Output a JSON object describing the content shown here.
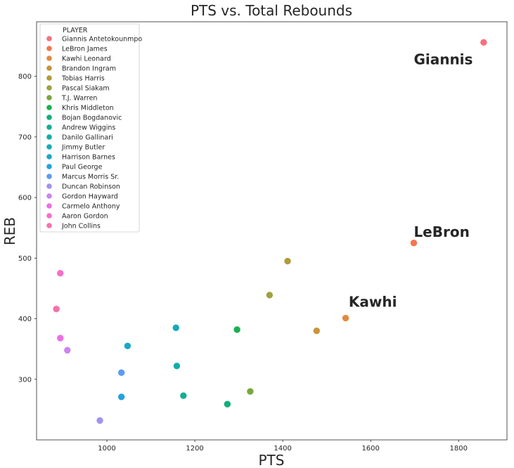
{
  "chart_data": {
    "type": "scatter",
    "title": "PTS vs. Total Rebounds",
    "xlabel": "PTS",
    "ylabel": "REB",
    "xlim": [
      840,
      1910
    ],
    "ylim": [
      200,
      890
    ],
    "xticks": [
      1000,
      1200,
      1400,
      1600,
      1800
    ],
    "yticks": [
      300,
      400,
      500,
      600,
      700,
      800
    ],
    "grid": false,
    "legend_title": "PLAYER",
    "legend_position": "upper-left",
    "points": [
      {
        "name": "Giannis Antetokounmpo",
        "x": 1857,
        "y": 856,
        "color": "#f5717d"
      },
      {
        "name": "LeBron James",
        "x": 1698,
        "y": 525,
        "color": "#f6754e"
      },
      {
        "name": "Kawhi Leonard",
        "x": 1543,
        "y": 401,
        "color": "#e08a3f"
      },
      {
        "name": "Brandon Ingram",
        "x": 1477,
        "y": 380,
        "color": "#c9933a"
      },
      {
        "name": "Tobias Harris",
        "x": 1411,
        "y": 495,
        "color": "#b39b3b"
      },
      {
        "name": "Pascal Siakam",
        "x": 1370,
        "y": 439,
        "color": "#9fa23d"
      },
      {
        "name": "T.J. Warren",
        "x": 1326,
        "y": 280,
        "color": "#79a83e"
      },
      {
        "name": "Khris Middleton",
        "x": 1296,
        "y": 382,
        "color": "#1ab04e"
      },
      {
        "name": "Bojan Bogdanovic",
        "x": 1274,
        "y": 259,
        "color": "#11ae77"
      },
      {
        "name": "Andrew Wiggins",
        "x": 1174,
        "y": 273,
        "color": "#14ae92"
      },
      {
        "name": "Danilo Gallinari",
        "x": 1159,
        "y": 322,
        "color": "#16aca4"
      },
      {
        "name": "Jimmy Butler",
        "x": 1157,
        "y": 385,
        "color": "#18aab6"
      },
      {
        "name": "Harrison Barnes",
        "x": 1047,
        "y": 355,
        "color": "#1aa7c8"
      },
      {
        "name": "Paul George",
        "x": 1033,
        "y": 271,
        "color": "#21a3dd"
      },
      {
        "name": "Marcus Morris Sr.",
        "x": 1033,
        "y": 311,
        "color": "#5b9cf0"
      },
      {
        "name": "Duncan Robinson",
        "x": 984,
        "y": 232,
        "color": "#a292f0"
      },
      {
        "name": "Gordon Hayward",
        "x": 910,
        "y": 348,
        "color": "#cd84ef"
      },
      {
        "name": "Carmelo Anthony",
        "x": 894,
        "y": 368,
        "color": "#ec6fe4"
      },
      {
        "name": "Aaron Gordon",
        "x": 894,
        "y": 475,
        "color": "#f66fc9"
      },
      {
        "name": "John Collins",
        "x": 885,
        "y": 416,
        "color": "#f771ab"
      }
    ],
    "annotations": [
      {
        "text": "Giannis",
        "x": 1698,
        "y": 820
      },
      {
        "text": "LeBron",
        "x": 1698,
        "y": 535
      },
      {
        "text": "Kawhi",
        "x": 1550,
        "y": 420
      }
    ]
  }
}
